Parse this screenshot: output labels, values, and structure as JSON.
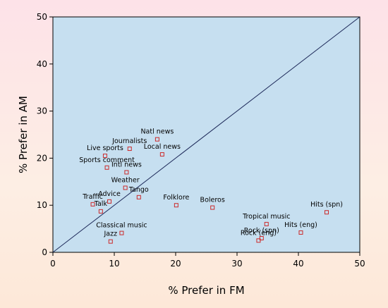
{
  "chart_data": {
    "type": "scatter",
    "title": "",
    "xlabel": "% Prefer in FM",
    "ylabel": "% Prefer in AM",
    "xlim": [
      0,
      50
    ],
    "ylim": [
      0,
      50
    ],
    "xticks": [
      0,
      10,
      20,
      30,
      40,
      50
    ],
    "yticks": [
      0,
      10,
      20,
      30,
      40,
      50
    ],
    "reference_line": "y = x",
    "grid": false,
    "colors": {
      "plot_background": "#c6dff0",
      "marker": "#cc2a2a",
      "reference_line": "#1e2a5a"
    },
    "points": [
      {
        "label": "Natl news",
        "x": 17.0,
        "y": 24.0
      },
      {
        "label": "Journalists",
        "x": 12.5,
        "y": 22.0
      },
      {
        "label": "Live sports",
        "x": 8.5,
        "y": 20.5
      },
      {
        "label": "Local news",
        "x": 17.8,
        "y": 20.8
      },
      {
        "label": "Sports comment",
        "x": 8.8,
        "y": 18.0
      },
      {
        "label": "Intl news",
        "x": 12.0,
        "y": 17.0
      },
      {
        "label": "Weather",
        "x": 11.8,
        "y": 13.7
      },
      {
        "label": "Tango",
        "x": 14.0,
        "y": 11.7
      },
      {
        "label": "Advice",
        "x": 9.2,
        "y": 10.8
      },
      {
        "label": "Traffic",
        "x": 6.5,
        "y": 10.2
      },
      {
        "label": "Talk",
        "x": 7.8,
        "y": 8.7
      },
      {
        "label": "Folklore",
        "x": 20.1,
        "y": 10.0
      },
      {
        "label": "Boleros",
        "x": 26.0,
        "y": 9.5
      },
      {
        "label": "Hits (spn)",
        "x": 44.6,
        "y": 8.5
      },
      {
        "label": "Tropical music",
        "x": 34.8,
        "y": 6.0
      },
      {
        "label": "Hits (eng)",
        "x": 40.4,
        "y": 4.2
      },
      {
        "label": "Classical music",
        "x": 11.2,
        "y": 4.1
      },
      {
        "label": "Rock (spn)",
        "x": 34.0,
        "y": 3.0
      },
      {
        "label": "Rock (eng)",
        "x": 33.5,
        "y": 2.5
      },
      {
        "label": "Jazz",
        "x": 9.4,
        "y": 2.3
      }
    ]
  }
}
